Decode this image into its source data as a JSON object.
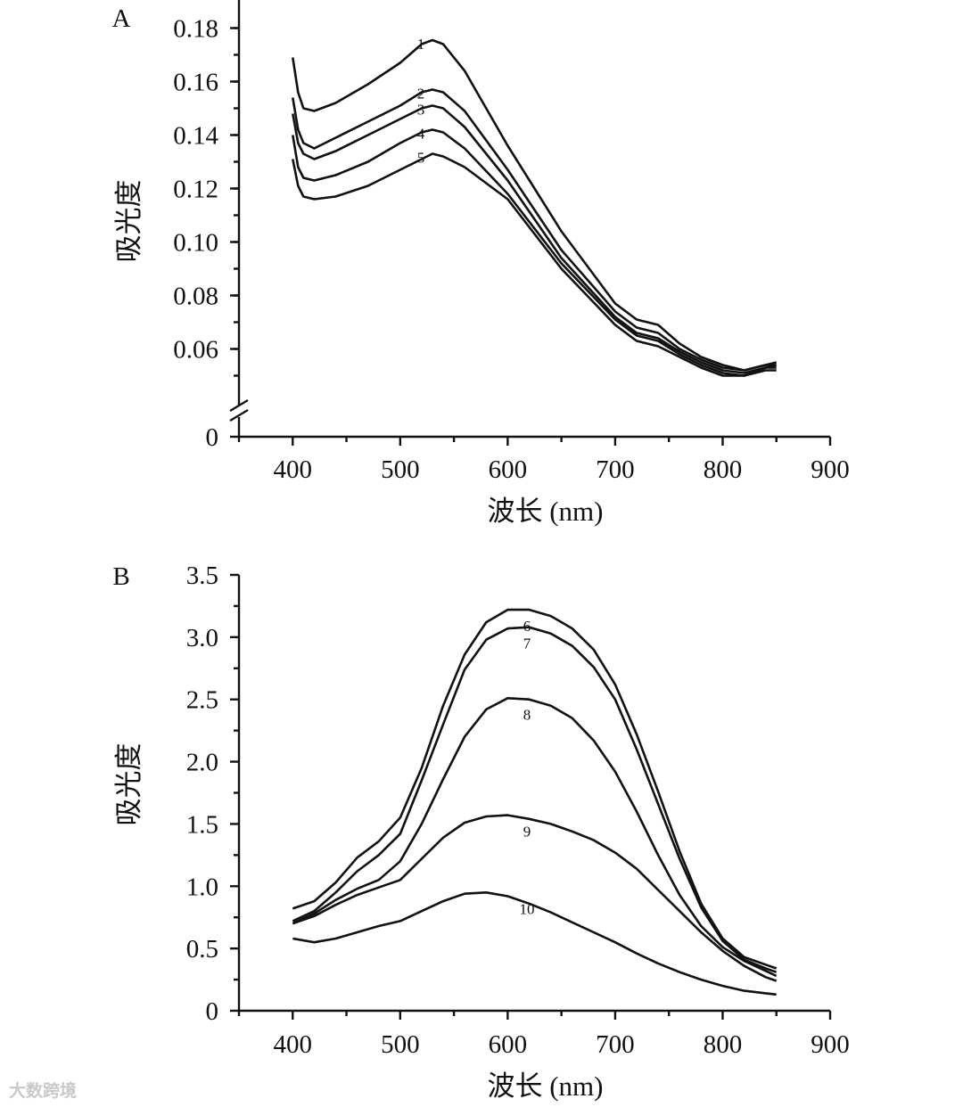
{
  "chart_data": [
    {
      "type": "line",
      "panel_label": "A",
      "title": "",
      "xlabel": "波长 (nm)",
      "ylabel": "吸光度",
      "xlim": [
        350,
        900
      ],
      "ylim": [
        0,
        0.185
      ],
      "axis_break": [
        0.02,
        0.045
      ],
      "x_ticks": [
        400,
        500,
        600,
        700,
        800,
        900
      ],
      "x_tick_labels": [
        "400",
        "500",
        "600",
        "700",
        "800",
        "900"
      ],
      "y_ticks": [
        0,
        0.06,
        0.08,
        0.1,
        0.12,
        0.14,
        0.16,
        0.18
      ],
      "y_tick_labels": [
        "0",
        "0.06",
        "0.08",
        "0.10",
        "0.12",
        "0.14",
        "0.16",
        "0.18"
      ],
      "x": [
        400,
        405,
        410,
        420,
        440,
        470,
        500,
        520,
        530,
        540,
        560,
        600,
        650,
        700,
        720,
        740,
        760,
        780,
        800,
        820,
        840,
        850
      ],
      "series": [
        {
          "name": "1",
          "values": [
            0.169,
            0.156,
            0.15,
            0.149,
            0.152,
            0.159,
            0.167,
            0.174,
            0.1755,
            0.174,
            0.164,
            0.136,
            0.104,
            0.077,
            0.071,
            0.069,
            0.062,
            0.057,
            0.054,
            0.052,
            0.054,
            0.054
          ]
        },
        {
          "name": "2",
          "values": [
            0.154,
            0.142,
            0.137,
            0.135,
            0.139,
            0.145,
            0.151,
            0.156,
            0.157,
            0.156,
            0.149,
            0.127,
            0.097,
            0.074,
            0.068,
            0.066,
            0.06,
            0.056,
            0.053,
            0.052,
            0.054,
            0.055
          ]
        },
        {
          "name": "3",
          "values": [
            0.148,
            0.137,
            0.133,
            0.131,
            0.134,
            0.14,
            0.146,
            0.15,
            0.151,
            0.15,
            0.143,
            0.123,
            0.094,
            0.072,
            0.066,
            0.064,
            0.059,
            0.055,
            0.052,
            0.051,
            0.053,
            0.054
          ]
        },
        {
          "name": "4",
          "values": [
            0.14,
            0.128,
            0.124,
            0.123,
            0.125,
            0.13,
            0.137,
            0.141,
            0.142,
            0.141,
            0.135,
            0.118,
            0.092,
            0.071,
            0.065,
            0.063,
            0.058,
            0.054,
            0.051,
            0.05,
            0.053,
            0.053
          ]
        },
        {
          "name": "5",
          "values": [
            0.131,
            0.121,
            0.117,
            0.116,
            0.117,
            0.121,
            0.127,
            0.131,
            0.133,
            0.132,
            0.128,
            0.116,
            0.09,
            0.069,
            0.063,
            0.061,
            0.057,
            0.053,
            0.05,
            0.05,
            0.052,
            0.052
          ]
        }
      ]
    },
    {
      "type": "line",
      "panel_label": "B",
      "title": "",
      "xlabel": "波长 (nm)",
      "ylabel": "吸光度",
      "xlim": [
        350,
        900
      ],
      "ylim": [
        0,
        3.5
      ],
      "x_ticks": [
        400,
        500,
        600,
        700,
        800,
        900
      ],
      "x_tick_labels": [
        "400",
        "500",
        "600",
        "700",
        "800",
        "900"
      ],
      "y_ticks": [
        0,
        0.5,
        1.0,
        1.5,
        2.0,
        2.5,
        3.0,
        3.5
      ],
      "y_tick_labels": [
        "0",
        "0.5",
        "1.0",
        "1.5",
        "2.0",
        "2.5",
        "3.0",
        "3.5"
      ],
      "x": [
        400,
        420,
        440,
        460,
        480,
        500,
        520,
        540,
        560,
        580,
        600,
        620,
        640,
        660,
        680,
        700,
        720,
        740,
        760,
        780,
        800,
        820,
        840,
        850
      ],
      "series": [
        {
          "name": "6",
          "values": [
            0.82,
            0.88,
            1.03,
            1.23,
            1.36,
            1.55,
            1.95,
            2.45,
            2.86,
            3.12,
            3.22,
            3.22,
            3.17,
            3.07,
            2.9,
            2.62,
            2.22,
            1.76,
            1.28,
            0.86,
            0.58,
            0.43,
            0.37,
            0.34
          ]
        },
        {
          "name": "7",
          "values": [
            0.72,
            0.8,
            0.95,
            1.12,
            1.25,
            1.42,
            1.85,
            2.3,
            2.74,
            2.98,
            3.07,
            3.08,
            3.03,
            2.93,
            2.76,
            2.5,
            2.1,
            1.66,
            1.22,
            0.83,
            0.56,
            0.41,
            0.34,
            0.31
          ]
        },
        {
          "name": "8",
          "values": [
            0.7,
            0.78,
            0.89,
            0.98,
            1.05,
            1.2,
            1.5,
            1.86,
            2.2,
            2.42,
            2.51,
            2.5,
            2.45,
            2.35,
            2.17,
            1.92,
            1.6,
            1.25,
            0.93,
            0.68,
            0.51,
            0.4,
            0.32,
            0.28
          ]
        },
        {
          "name": "9",
          "values": [
            0.7,
            0.76,
            0.85,
            0.93,
            0.99,
            1.05,
            1.22,
            1.39,
            1.51,
            1.56,
            1.57,
            1.54,
            1.5,
            1.44,
            1.37,
            1.27,
            1.14,
            0.97,
            0.8,
            0.63,
            0.48,
            0.36,
            0.27,
            0.24
          ]
        },
        {
          "name": "10",
          "values": [
            0.58,
            0.55,
            0.58,
            0.63,
            0.68,
            0.72,
            0.8,
            0.88,
            0.94,
            0.95,
            0.92,
            0.86,
            0.79,
            0.71,
            0.63,
            0.55,
            0.46,
            0.38,
            0.31,
            0.25,
            0.2,
            0.16,
            0.14,
            0.13
          ]
        }
      ]
    }
  ],
  "watermark": {
    "text": "大数跨境"
  }
}
